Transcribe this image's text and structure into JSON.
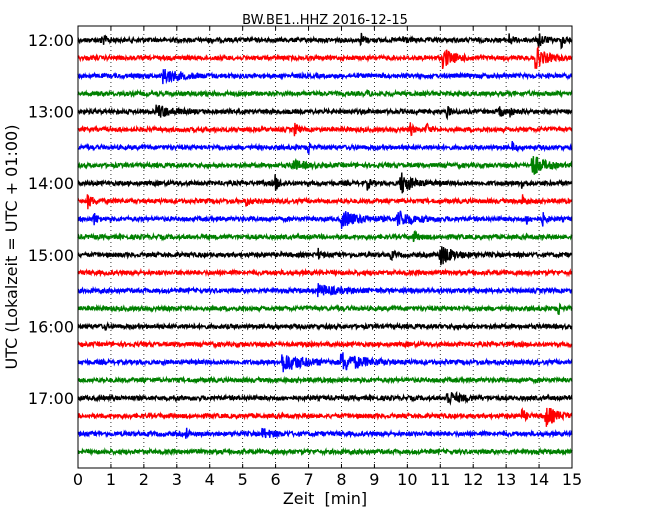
{
  "chart_data": {
    "type": "line",
    "title": "BW.BE1..HHZ 2016-12-15",
    "xlabel": "Zeit  [min]",
    "ylabel": "UTC (Lokalzeit = UTC + 01:00)",
    "xlim": [
      0,
      15
    ],
    "x_ticks": [
      "0",
      "1",
      "2",
      "3",
      "4",
      "5",
      "6",
      "7",
      "8",
      "9",
      "10",
      "11",
      "12",
      "13",
      "14",
      "15"
    ],
    "y_ticks": [
      "12:00",
      "13:00",
      "14:00",
      "15:00",
      "16:00",
      "17:00"
    ],
    "grid": "vertical dotted",
    "colors": [
      "#000000",
      "#ff0000",
      "#0000ff",
      "#008000"
    ],
    "noise_level": 0.12,
    "traces": [
      {
        "start": "12:00",
        "events": [
          {
            "t": 0.7,
            "a": 0.3,
            "d": 0.15
          },
          {
            "t": 8.6,
            "a": 0.35,
            "d": 0.08
          },
          {
            "t": 9.9,
            "a": 0.3,
            "d": 0.08
          },
          {
            "t": 13.1,
            "a": 0.3,
            "d": 0.1
          },
          {
            "t": 14.0,
            "a": 0.4,
            "d": 0.15
          },
          {
            "t": 14.7,
            "a": 0.35,
            "d": 0.1
          }
        ]
      },
      {
        "start": "12:15",
        "events": [
          {
            "t": 11.1,
            "a": 0.5,
            "d": 0.3
          },
          {
            "t": 13.9,
            "a": 0.55,
            "d": 0.3
          }
        ]
      },
      {
        "start": "12:30",
        "events": [
          {
            "t": 2.6,
            "a": 0.35,
            "d": 0.5
          }
        ]
      },
      {
        "start": "12:45",
        "events": [
          {
            "t": 8.8,
            "a": 0.2,
            "d": 0.05
          }
        ]
      },
      {
        "start": "13:00",
        "events": [
          {
            "t": 2.4,
            "a": 0.35,
            "d": 0.4
          },
          {
            "t": 11.2,
            "a": 0.3,
            "d": 0.1
          },
          {
            "t": 12.8,
            "a": 0.3,
            "d": 0.1
          },
          {
            "t": 13.1,
            "a": 0.3,
            "d": 0.08
          }
        ]
      },
      {
        "start": "13:15",
        "events": [
          {
            "t": 6.6,
            "a": 0.3,
            "d": 0.08
          },
          {
            "t": 10.1,
            "a": 0.3,
            "d": 0.08
          },
          {
            "t": 10.6,
            "a": 0.3,
            "d": 0.08
          }
        ]
      },
      {
        "start": "13:30",
        "events": [
          {
            "t": 7.0,
            "a": 0.3,
            "d": 0.06
          },
          {
            "t": 13.2,
            "a": 0.25,
            "d": 0.1
          }
        ]
      },
      {
        "start": "13:45",
        "events": [
          {
            "t": 6.5,
            "a": 0.3,
            "d": 0.3
          },
          {
            "t": 13.8,
            "a": 0.6,
            "d": 0.3
          }
        ]
      },
      {
        "start": "14:00",
        "events": [
          {
            "t": 6.0,
            "a": 0.4,
            "d": 0.1
          },
          {
            "t": 8.8,
            "a": 0.3,
            "d": 0.08
          },
          {
            "t": 9.8,
            "a": 0.6,
            "d": 0.3
          },
          {
            "t": 13.5,
            "a": 0.3,
            "d": 0.08
          }
        ]
      },
      {
        "start": "14:15",
        "events": [
          {
            "t": 0.3,
            "a": 0.35,
            "d": 0.15
          },
          {
            "t": 5.1,
            "a": 0.3,
            "d": 0.08
          },
          {
            "t": 13.5,
            "a": 0.3,
            "d": 0.1
          }
        ]
      },
      {
        "start": "14:30",
        "events": [
          {
            "t": 0.5,
            "a": 0.3,
            "d": 0.1
          },
          {
            "t": 8.0,
            "a": 0.45,
            "d": 0.5
          },
          {
            "t": 9.7,
            "a": 0.45,
            "d": 0.4
          },
          {
            "t": 13.6,
            "a": 0.3,
            "d": 0.1
          },
          {
            "t": 14.1,
            "a": 0.35,
            "d": 0.1
          }
        ]
      },
      {
        "start": "14:45",
        "events": [
          {
            "t": 10.2,
            "a": 0.25,
            "d": 0.15
          }
        ]
      },
      {
        "start": "15:00",
        "events": [
          {
            "t": 7.3,
            "a": 0.3,
            "d": 0.08
          },
          {
            "t": 9.5,
            "a": 0.25,
            "d": 0.08
          },
          {
            "t": 11.0,
            "a": 0.55,
            "d": 0.35
          }
        ]
      },
      {
        "start": "15:15",
        "events": []
      },
      {
        "start": "15:30",
        "events": [
          {
            "t": 7.3,
            "a": 0.3,
            "d": 0.5
          }
        ]
      },
      {
        "start": "15:45",
        "events": [
          {
            "t": 14.6,
            "a": 0.3,
            "d": 0.08
          }
        ]
      },
      {
        "start": "16:00",
        "events": [
          {
            "t": 0.8,
            "a": 0.25,
            "d": 0.05
          }
        ]
      },
      {
        "start": "16:15",
        "events": []
      },
      {
        "start": "16:30",
        "events": [
          {
            "t": 6.2,
            "a": 0.5,
            "d": 0.6
          },
          {
            "t": 8.0,
            "a": 0.5,
            "d": 0.6
          }
        ]
      },
      {
        "start": "16:45",
        "events": []
      },
      {
        "start": "17:00",
        "events": [
          {
            "t": 11.2,
            "a": 0.35,
            "d": 0.4
          }
        ]
      },
      {
        "start": "17:15",
        "events": [
          {
            "t": 13.5,
            "a": 0.3,
            "d": 0.1
          },
          {
            "t": 14.2,
            "a": 0.55,
            "d": 0.3
          }
        ]
      },
      {
        "start": "17:30",
        "events": [
          {
            "t": 3.3,
            "a": 0.25,
            "d": 0.05
          },
          {
            "t": 5.6,
            "a": 0.25,
            "d": 0.3
          }
        ]
      },
      {
        "start": "17:45",
        "events": []
      }
    ]
  }
}
